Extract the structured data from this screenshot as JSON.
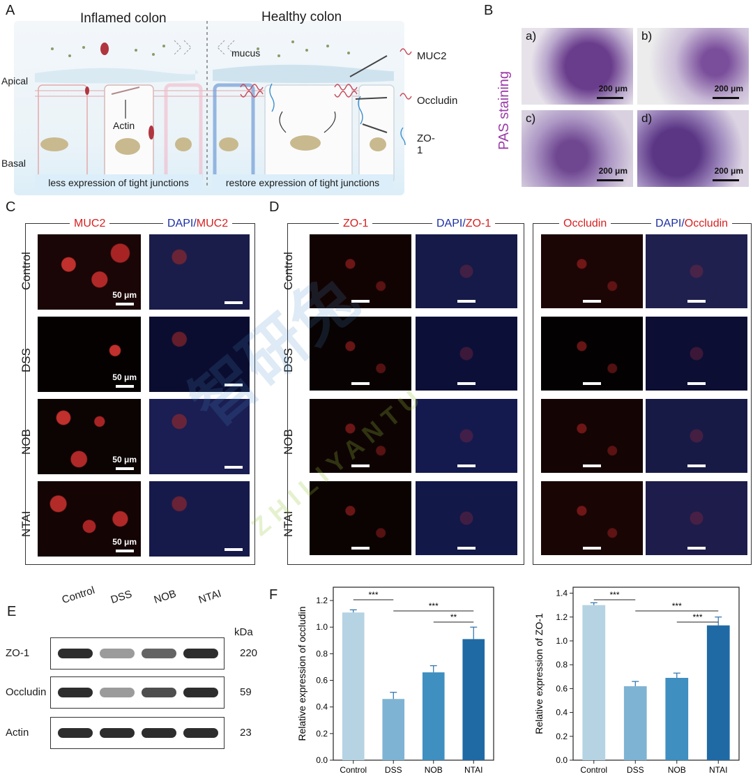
{
  "panels": {
    "A": "A",
    "B": "B",
    "C": "C",
    "D": "D",
    "E": "E",
    "F": "F"
  },
  "panel_a": {
    "inflamed_title": "Inflamed colon",
    "healthy_title": "Healthy colon",
    "apical": "Apical",
    "basal": "Basal",
    "mucus": "mucus",
    "actin": "Actin",
    "legend": [
      "MUC2",
      "Occludin",
      "ZO-1"
    ],
    "footer_left": "less expression of tight junctions",
    "footer_right": "restore expression of tight junctions"
  },
  "panel_b": {
    "side_label": "PAS staining",
    "images": [
      {
        "label": "a)",
        "scale": "200 μm"
      },
      {
        "label": "b)",
        "scale": "200 μm"
      },
      {
        "label": "c)",
        "scale": "200 μm"
      },
      {
        "label": "d)",
        "scale": "200 μm"
      }
    ]
  },
  "panel_c": {
    "col1": "MUC2",
    "col2_dapi": "DAPI/",
    "col2_marker": "MUC2",
    "rows": [
      "Control",
      "DSS",
      "NOB",
      "NTAI"
    ],
    "scale": "50 μm"
  },
  "panel_d": {
    "zo1": "ZO-1",
    "dapi": "DAPI/",
    "occludin": "Occludin",
    "rows": [
      "Control",
      "DSS",
      "NOB",
      "NTAI"
    ]
  },
  "panel_e": {
    "lanes": [
      "Control",
      "DSS",
      "NOB",
      "NTAI"
    ],
    "kda_label": "kDa",
    "blots": [
      {
        "protein": "ZO-1",
        "kda": "220"
      },
      {
        "protein": "Occludin",
        "kda": "59"
      },
      {
        "protein": "Actin",
        "kda": "23"
      }
    ],
    "intensity": {
      "ZO-1": [
        0.95,
        0.45,
        0.7,
        0.95
      ],
      "Occludin": [
        0.95,
        0.45,
        0.8,
        0.95
      ],
      "Actin": [
        0.95,
        0.95,
        0.95,
        0.95
      ]
    }
  },
  "watermark": {
    "main": "智研兔",
    "sub": "ZHILIYANTU"
  },
  "colors": {
    "bars": [
      "#b5d3e3",
      "#7fb3d3",
      "#3f8fc0",
      "#1f6aa5"
    ],
    "error": "#2a6fa8",
    "red_label": "#d61f1f",
    "blue_label": "#1b2fa3",
    "pas_purple": "#9b3aa8"
  },
  "chart_data": [
    {
      "type": "bar",
      "categories": [
        "Control",
        "DSS",
        "NOB",
        "NTAI"
      ],
      "values": [
        1.11,
        0.46,
        0.66,
        0.91
      ],
      "errors": [
        0.02,
        0.05,
        0.05,
        0.09
      ],
      "ylabel": "Relative expression of occludin",
      "ylim": [
        0,
        1.3
      ],
      "yticks": [
        "0.0",
        "0.2",
        "0.4",
        "0.6",
        "0.8",
        "1.0",
        "1.2"
      ],
      "significance": [
        {
          "from": 0,
          "to": 1,
          "label": "***"
        },
        {
          "from": 1,
          "to": 3,
          "label": "***"
        },
        {
          "from": 2,
          "to": 3,
          "label": "**"
        }
      ]
    },
    {
      "type": "bar",
      "categories": [
        "Control",
        "DSS",
        "NOB",
        "NTAI"
      ],
      "values": [
        1.3,
        0.62,
        0.69,
        1.13
      ],
      "errors": [
        0.02,
        0.04,
        0.04,
        0.07
      ],
      "ylabel": "Relative expression of ZO-1",
      "ylim": [
        0,
        1.45
      ],
      "yticks": [
        "0.0",
        "0.2",
        "0.4",
        "0.6",
        "0.8",
        "1.0",
        "1.2",
        "1.4"
      ],
      "significance": [
        {
          "from": 0,
          "to": 1,
          "label": "***"
        },
        {
          "from": 1,
          "to": 3,
          "label": "***"
        },
        {
          "from": 2,
          "to": 3,
          "label": "***"
        }
      ]
    }
  ]
}
